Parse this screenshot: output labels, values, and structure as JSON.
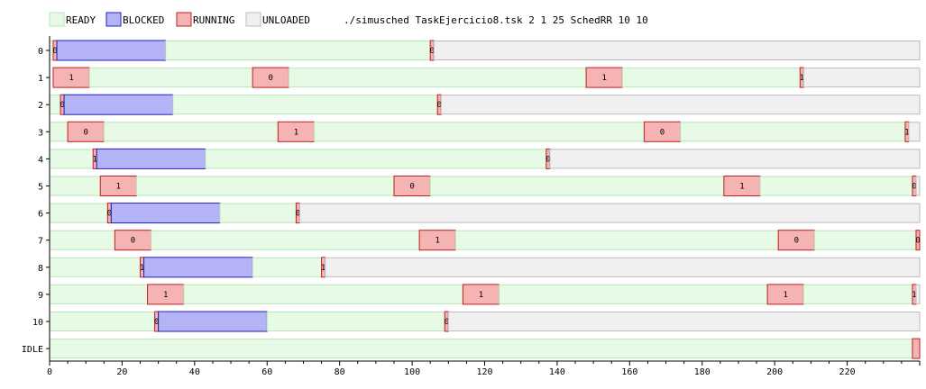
{
  "chart_data": {
    "type": "gantt",
    "title": "./simusched TaskEjercicio8.tsk 2 1 25 SchedRR 10 10",
    "legend": [
      {
        "state": "READY",
        "label": "READY",
        "fill": "#e6fae6",
        "stroke": "#b8e6b8"
      },
      {
        "state": "BLOCKED",
        "label": "BLOCKED",
        "fill": "#b3b3f5",
        "stroke": "#2020c0"
      },
      {
        "state": "RUNNING",
        "label": "RUNNING",
        "fill": "#f5b3b3",
        "stroke": "#c02020"
      },
      {
        "state": "UNLOADED",
        "label": "UNLOADED",
        "fill": "#f0f0f0",
        "stroke": "#bbbbbb"
      }
    ],
    "legend_position": "top",
    "x_ticks": [
      0,
      20,
      40,
      60,
      80,
      100,
      120,
      140,
      160,
      180,
      200,
      220
    ],
    "x_tick_labels": [
      "0",
      "20",
      "40",
      "60",
      "80",
      "100",
      "120",
      "140",
      "160",
      "180",
      "200",
      "220"
    ],
    "xlim": [
      0,
      240
    ],
    "rows": [
      {
        "label": "0",
        "segments": [
          {
            "start": 0,
            "end": 1,
            "state": "READY"
          },
          {
            "start": 1,
            "end": 2,
            "state": "RUNNING",
            "text": "0"
          },
          {
            "start": 2,
            "end": 32,
            "state": "BLOCKED"
          },
          {
            "start": 32,
            "end": 105,
            "state": "READY"
          },
          {
            "start": 105,
            "end": 106,
            "state": "RUNNING",
            "text": "0"
          },
          {
            "start": 106,
            "end": 240,
            "state": "UNLOADED"
          }
        ]
      },
      {
        "label": "1",
        "segments": [
          {
            "start": 1,
            "end": 11,
            "state": "RUNNING",
            "text": "1"
          },
          {
            "start": 11,
            "end": 56,
            "state": "READY"
          },
          {
            "start": 56,
            "end": 66,
            "state": "RUNNING",
            "text": "0"
          },
          {
            "start": 66,
            "end": 148,
            "state": "READY"
          },
          {
            "start": 148,
            "end": 158,
            "state": "RUNNING",
            "text": "1"
          },
          {
            "start": 158,
            "end": 207,
            "state": "READY"
          },
          {
            "start": 207,
            "end": 208,
            "state": "RUNNING",
            "text": "1"
          },
          {
            "start": 208,
            "end": 240,
            "state": "UNLOADED"
          }
        ]
      },
      {
        "label": "2",
        "segments": [
          {
            "start": 0,
            "end": 3,
            "state": "READY"
          },
          {
            "start": 3,
            "end": 4,
            "state": "RUNNING",
            "text": "0"
          },
          {
            "start": 4,
            "end": 34,
            "state": "BLOCKED"
          },
          {
            "start": 34,
            "end": 107,
            "state": "READY"
          },
          {
            "start": 107,
            "end": 108,
            "state": "RUNNING",
            "text": "0"
          },
          {
            "start": 108,
            "end": 240,
            "state": "UNLOADED"
          }
        ]
      },
      {
        "label": "3",
        "segments": [
          {
            "start": 0,
            "end": 5,
            "state": "READY"
          },
          {
            "start": 5,
            "end": 15,
            "state": "RUNNING",
            "text": "0"
          },
          {
            "start": 15,
            "end": 63,
            "state": "READY"
          },
          {
            "start": 63,
            "end": 73,
            "state": "RUNNING",
            "text": "1"
          },
          {
            "start": 73,
            "end": 164,
            "state": "READY"
          },
          {
            "start": 164,
            "end": 174,
            "state": "RUNNING",
            "text": "0"
          },
          {
            "start": 174,
            "end": 236,
            "state": "READY"
          },
          {
            "start": 236,
            "end": 237,
            "state": "RUNNING",
            "text": "1"
          },
          {
            "start": 237,
            "end": 240,
            "state": "UNLOADED"
          }
        ]
      },
      {
        "label": "4",
        "segments": [
          {
            "start": 0,
            "end": 12,
            "state": "READY"
          },
          {
            "start": 12,
            "end": 13,
            "state": "RUNNING",
            "text": "1"
          },
          {
            "start": 13,
            "end": 43,
            "state": "BLOCKED"
          },
          {
            "start": 43,
            "end": 137,
            "state": "READY"
          },
          {
            "start": 137,
            "end": 138,
            "state": "RUNNING",
            "text": "0"
          },
          {
            "start": 138,
            "end": 240,
            "state": "UNLOADED"
          }
        ]
      },
      {
        "label": "5",
        "segments": [
          {
            "start": 0,
            "end": 14,
            "state": "READY"
          },
          {
            "start": 14,
            "end": 24,
            "state": "RUNNING",
            "text": "1"
          },
          {
            "start": 24,
            "end": 95,
            "state": "READY"
          },
          {
            "start": 95,
            "end": 105,
            "state": "RUNNING",
            "text": "0"
          },
          {
            "start": 105,
            "end": 186,
            "state": "READY"
          },
          {
            "start": 186,
            "end": 196,
            "state": "RUNNING",
            "text": "1"
          },
          {
            "start": 196,
            "end": 238,
            "state": "READY"
          },
          {
            "start": 238,
            "end": 239,
            "state": "RUNNING",
            "text": "0"
          },
          {
            "start": 239,
            "end": 240,
            "state": "UNLOADED"
          }
        ]
      },
      {
        "label": "6",
        "segments": [
          {
            "start": 0,
            "end": 16,
            "state": "READY"
          },
          {
            "start": 16,
            "end": 17,
            "state": "RUNNING",
            "text": "0"
          },
          {
            "start": 17,
            "end": 47,
            "state": "BLOCKED"
          },
          {
            "start": 47,
            "end": 68,
            "state": "READY"
          },
          {
            "start": 68,
            "end": 69,
            "state": "RUNNING",
            "text": "0"
          },
          {
            "start": 69,
            "end": 240,
            "state": "UNLOADED"
          }
        ]
      },
      {
        "label": "7",
        "segments": [
          {
            "start": 0,
            "end": 18,
            "state": "READY"
          },
          {
            "start": 18,
            "end": 28,
            "state": "RUNNING",
            "text": "0"
          },
          {
            "start": 28,
            "end": 102,
            "state": "READY"
          },
          {
            "start": 102,
            "end": 112,
            "state": "RUNNING",
            "text": "1"
          },
          {
            "start": 112,
            "end": 201,
            "state": "READY"
          },
          {
            "start": 201,
            "end": 211,
            "state": "RUNNING",
            "text": "0"
          },
          {
            "start": 211,
            "end": 239,
            "state": "READY"
          },
          {
            "start": 239,
            "end": 240,
            "state": "RUNNING",
            "text": "0"
          }
        ]
      },
      {
        "label": "8",
        "segments": [
          {
            "start": 0,
            "end": 25,
            "state": "READY"
          },
          {
            "start": 25,
            "end": 26,
            "state": "RUNNING",
            "text": "1"
          },
          {
            "start": 26,
            "end": 56,
            "state": "BLOCKED"
          },
          {
            "start": 56,
            "end": 75,
            "state": "READY"
          },
          {
            "start": 75,
            "end": 76,
            "state": "RUNNING",
            "text": "1"
          },
          {
            "start": 76,
            "end": 240,
            "state": "UNLOADED"
          }
        ]
      },
      {
        "label": "9",
        "segments": [
          {
            "start": 0,
            "end": 27,
            "state": "READY"
          },
          {
            "start": 27,
            "end": 37,
            "state": "RUNNING",
            "text": "1"
          },
          {
            "start": 37,
            "end": 114,
            "state": "READY"
          },
          {
            "start": 114,
            "end": 124,
            "state": "RUNNING",
            "text": "1"
          },
          {
            "start": 124,
            "end": 198,
            "state": "READY"
          },
          {
            "start": 198,
            "end": 208,
            "state": "RUNNING",
            "text": "1"
          },
          {
            "start": 208,
            "end": 238,
            "state": "READY"
          },
          {
            "start": 238,
            "end": 239,
            "state": "RUNNING",
            "text": "1"
          },
          {
            "start": 239,
            "end": 240,
            "state": "UNLOADED"
          }
        ]
      },
      {
        "label": "10",
        "segments": [
          {
            "start": 0,
            "end": 29,
            "state": "READY"
          },
          {
            "start": 29,
            "end": 30,
            "state": "RUNNING",
            "text": "0"
          },
          {
            "start": 30,
            "end": 60,
            "state": "BLOCKED"
          },
          {
            "start": 60,
            "end": 109,
            "state": "READY"
          },
          {
            "start": 109,
            "end": 110,
            "state": "RUNNING",
            "text": "0"
          },
          {
            "start": 110,
            "end": 240,
            "state": "UNLOADED"
          }
        ]
      },
      {
        "label": "IDLE",
        "segments": [
          {
            "start": 0,
            "end": 238,
            "state": "READY"
          },
          {
            "start": 238,
            "end": 240,
            "state": "RUNNING"
          }
        ]
      }
    ]
  }
}
